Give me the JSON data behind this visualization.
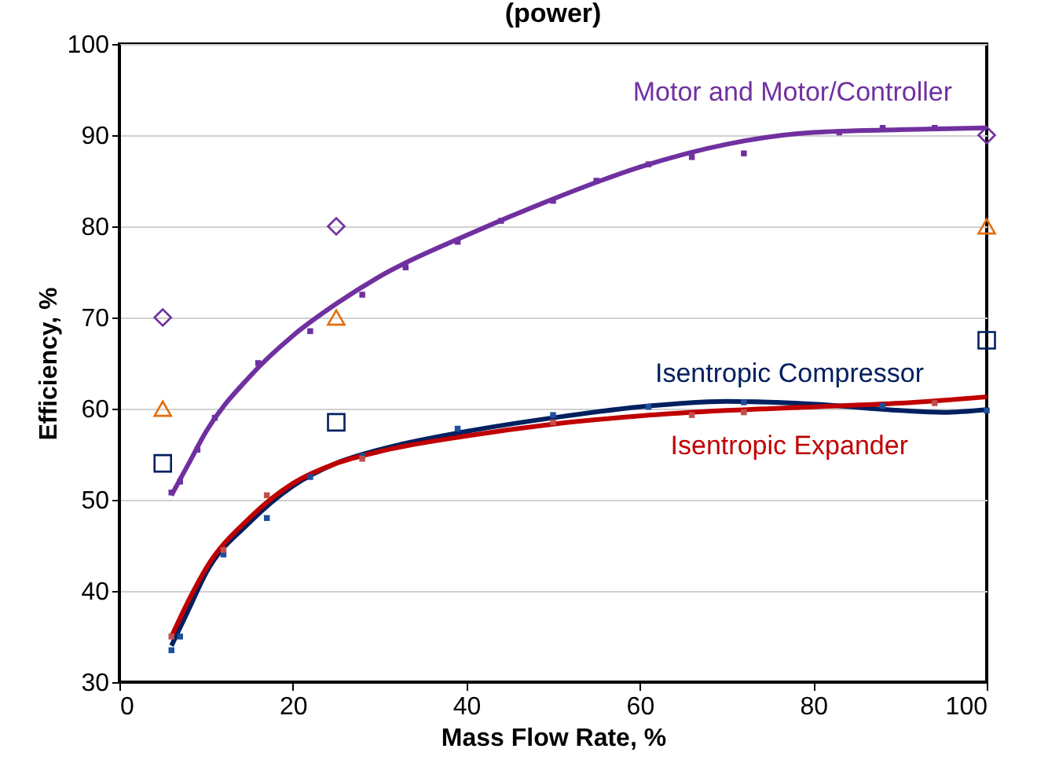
{
  "chart_data": {
    "type": "line",
    "title": "(power)",
    "xlabel": "Mass Flow Rate, %",
    "ylabel": "Efficiency, %",
    "xlim": [
      0,
      100
    ],
    "ylim": [
      30,
      100
    ],
    "xticks": [
      0,
      20,
      40,
      60,
      80,
      100
    ],
    "yticks": [
      30,
      40,
      50,
      60,
      70,
      80,
      90,
      100
    ],
    "grid": "y",
    "legend": false,
    "line_style": "solid",
    "series": [
      {
        "name": "Motor and Motor/Controller",
        "type": "line",
        "color": "#7030a0",
        "marker": "none",
        "x": [
          6,
          8,
          10,
          15,
          20,
          25,
          30,
          40,
          50,
          60,
          70,
          80,
          90,
          100
        ],
        "values": [
          50.5,
          54,
          57.5,
          63.5,
          68,
          71.5,
          74.5,
          79,
          83,
          86.5,
          89,
          90.3,
          90.6,
          90.8
        ]
      },
      {
        "name": "Isentropic Compressor",
        "type": "line",
        "color": "#002060",
        "marker": "none",
        "x": [
          6,
          8,
          10,
          15,
          20,
          25,
          30,
          40,
          50,
          60,
          70,
          80,
          90,
          95,
          100
        ],
        "values": [
          34,
          38,
          42,
          47.5,
          51.5,
          54,
          55.5,
          57.5,
          59,
          60.2,
          60.8,
          60.5,
          59.8,
          59.6,
          59.9
        ]
      },
      {
        "name": "Isentropic Expander",
        "type": "line",
        "color": "#c00000",
        "marker": "none",
        "x": [
          6,
          8,
          10,
          15,
          20,
          25,
          30,
          40,
          50,
          60,
          70,
          80,
          90,
          100
        ],
        "values": [
          35,
          39,
          42.5,
          48,
          51.8,
          54,
          55.3,
          57,
          58.3,
          59.2,
          59.8,
          60.2,
          60.6,
          61.3
        ]
      },
      {
        "type": "scatter",
        "color": "#7030a0",
        "marker": "square",
        "x": [
          6,
          7,
          9,
          11,
          16,
          22,
          28,
          33,
          39,
          44,
          50,
          55,
          61,
          66,
          72,
          83,
          88,
          94
        ],
        "values": [
          50.8,
          52,
          55.5,
          59,
          65,
          68.5,
          72.5,
          75.5,
          78.3,
          80.6,
          82.8,
          85,
          86.8,
          87.6,
          88,
          90.3,
          90.8,
          90.8
        ]
      },
      {
        "type": "scatter",
        "color": "#1f4e9c",
        "marker": "square",
        "x": [
          6,
          7,
          12,
          17,
          22,
          28,
          39,
          50,
          61,
          72,
          88,
          100
        ],
        "values": [
          33.5,
          35,
          44,
          48,
          52.5,
          54.8,
          57.8,
          59.3,
          60.2,
          60.7,
          60.3,
          59.8
        ]
      },
      {
        "type": "scatter",
        "color": "#c0504d",
        "marker": "square",
        "x": [
          6,
          12,
          17,
          28,
          50,
          66,
          72,
          94
        ],
        "values": [
          35,
          44.5,
          50.5,
          54.5,
          58.5,
          59.3,
          59.6,
          60.6
        ]
      },
      {
        "type": "scatter",
        "color": "#7030a0",
        "marker": "diamond",
        "x": [
          5,
          25,
          100
        ],
        "values": [
          70,
          80,
          90
        ]
      },
      {
        "type": "scatter",
        "color": "#e46c0a",
        "marker": "triangle",
        "x": [
          5,
          25,
          100
        ],
        "values": [
          60,
          70,
          80
        ]
      },
      {
        "type": "scatter",
        "color": "#002060",
        "marker": "square",
        "x": [
          5,
          25,
          100
        ],
        "values": [
          54,
          58.5,
          67.5
        ]
      }
    ]
  }
}
